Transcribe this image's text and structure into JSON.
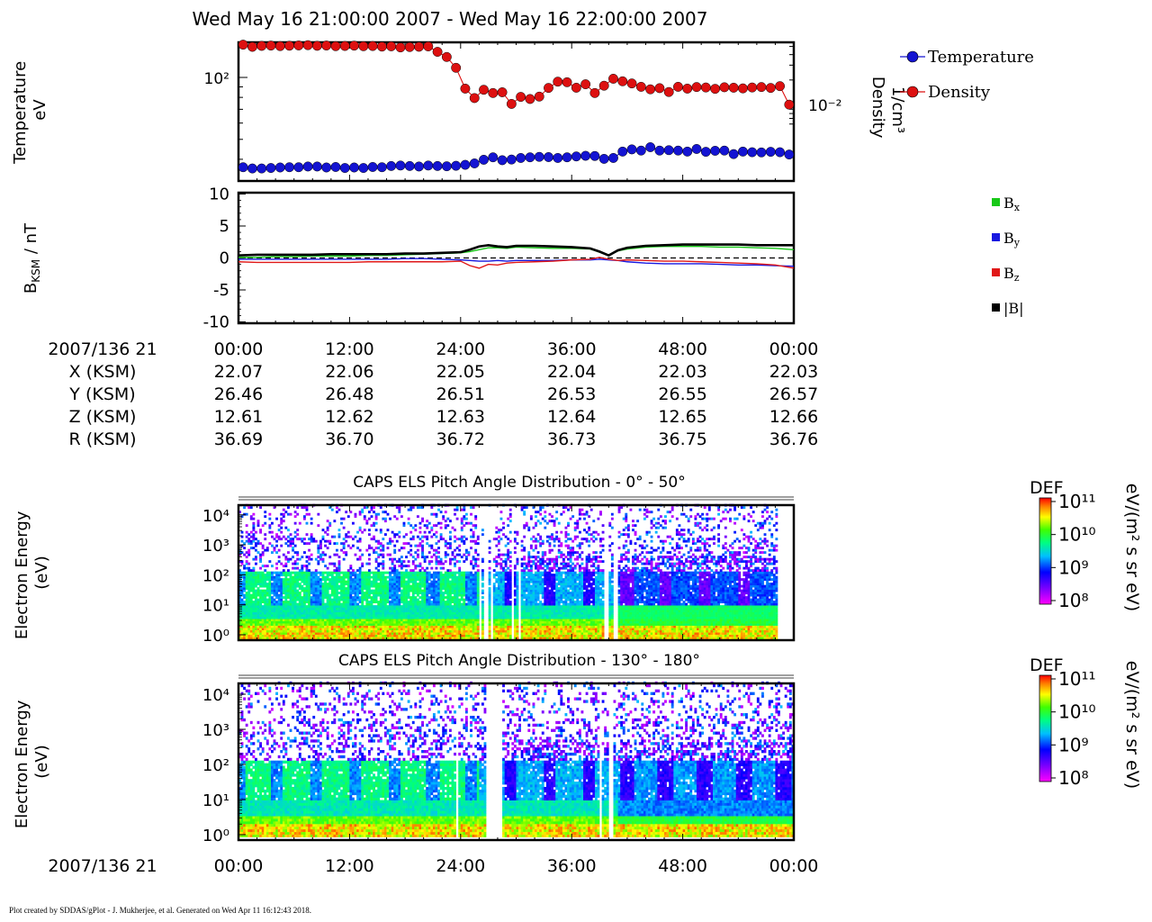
{
  "page_title": "Wed May 16 21:00:00 2007 - Wed May 16 22:00:00 2007",
  "footer": "Plot created by SDDAS/gPlot - J. Mukherjee, et al.  Generated on Wed Apr 11 16:12:43 2018.",
  "colors": {
    "temperature": "#1414d2",
    "density": "#dd1010",
    "bx": "#18c818",
    "by": "#1818e0",
    "bz": "#e01818",
    "bmag": "#000000"
  },
  "chart_data": [
    {
      "type": "scatter",
      "panel": "plasma-moments",
      "x_unit": "minutes after 21:00",
      "x": [
        0,
        1,
        2,
        3,
        4,
        5,
        6,
        7,
        8,
        9,
        10,
        11,
        12,
        13,
        14,
        15,
        16,
        17,
        18,
        19,
        20,
        21,
        22,
        23,
        24,
        25,
        26,
        27,
        28,
        29,
        30,
        31,
        32,
        33,
        34,
        35,
        36,
        37,
        38,
        39,
        40,
        41,
        42,
        43,
        44,
        45,
        46,
        47,
        48,
        49,
        50,
        51,
        52,
        53,
        54,
        55,
        56,
        57,
        58,
        59
      ],
      "ylabel": "Temperature eV",
      "ylabel_lines": [
        "Temperature",
        "eV"
      ],
      "y_scale": "log",
      "y_ticks": [
        100
      ],
      "y_tick_labels": [
        "10²"
      ],
      "y2label_lines": [
        "Density",
        "1/cm³"
      ],
      "y2_scale": "log",
      "y2_ticks": [
        0.01
      ],
      "y2_tick_labels": [
        "10⁻²"
      ],
      "legend_position": "right",
      "series": [
        {
          "name": "Temperature",
          "axis": "left",
          "values": [
            36.6,
            36.1,
            36.1,
            36.3,
            36.5,
            36.6,
            36.6,
            36.9,
            36.9,
            36.5,
            36.7,
            36.3,
            36.5,
            36.3,
            36.7,
            36.6,
            37.1,
            37.3,
            37.1,
            36.9,
            37.3,
            37.1,
            37,
            37.2,
            37.6,
            38.2,
            39.8,
            40.9,
            39.6,
            39.9,
            40.6,
            40.9,
            41.1,
            41,
            40.6,
            40.9,
            41.3,
            41.6,
            41.5,
            40.2,
            40.6,
            43.6,
            44.7,
            44.1,
            45.8,
            44.1,
            44.3,
            44.1,
            43.6,
            44.9,
            43.5,
            44,
            44.1,
            42.4,
            43.6,
            43.3,
            43.2,
            43.5,
            43.3,
            42.2
          ]
        },
        {
          "name": "Density",
          "axis": "right",
          "values": [
            0.0525,
            0.0495,
            0.0508,
            0.0512,
            0.0505,
            0.051,
            0.0514,
            0.0518,
            0.0509,
            0.0513,
            0.0504,
            0.0507,
            0.0511,
            0.0503,
            0.0506,
            0.0498,
            0.0502,
            0.0487,
            0.0492,
            0.0496,
            0.0501,
            0.0432,
            0.0375,
            0.0279,
            0.0158,
            0.0122,
            0.0153,
            0.014,
            0.0143,
            0.0104,
            0.0126,
            0.0119,
            0.0127,
            0.0161,
            0.0191,
            0.0188,
            0.0162,
            0.0178,
            0.014,
            0.0171,
            0.0207,
            0.0193,
            0.0182,
            0.0166,
            0.0155,
            0.016,
            0.0144,
            0.0166,
            0.0158,
            0.0165,
            0.0163,
            0.0157,
            0.0164,
            0.0162,
            0.0159,
            0.0163,
            0.0165,
            0.0161,
            0.0169,
            0.0102
          ]
        }
      ]
    },
    {
      "type": "line",
      "panel": "magnetic-field",
      "x_unit": "minutes after 21:00",
      "x": [
        0,
        2,
        4,
        6,
        8,
        10,
        12,
        14,
        16,
        18,
        20,
        22,
        24,
        25,
        26,
        27,
        28,
        29,
        30,
        32,
        34,
        36,
        38,
        39,
        40,
        41,
        42,
        44,
        46,
        48,
        50,
        52,
        54,
        56,
        58,
        60
      ],
      "ylabel": "B_KSM / nT",
      "ylim": [
        -10,
        10
      ],
      "y_ticks": [
        10,
        5,
        0,
        -5,
        -10
      ],
      "legend_position": "right",
      "series": [
        {
          "name": "Bx",
          "values": [
            0.1,
            0.1,
            0.2,
            0.2,
            0.3,
            0.3,
            0.3,
            0.4,
            0.4,
            0.5,
            0.6,
            0.7,
            0.8,
            1.0,
            1.3,
            1.6,
            1.6,
            1.5,
            1.7,
            1.6,
            1.5,
            1.5,
            1.4,
            0.9,
            0.4,
            1.1,
            1.4,
            1.7,
            1.8,
            1.8,
            1.8,
            1.7,
            1.7,
            1.6,
            1.5,
            1.3
          ]
        },
        {
          "name": "By",
          "values": [
            -0.2,
            -0.2,
            -0.2,
            -0.2,
            -0.2,
            -0.2,
            -0.2,
            -0.2,
            -0.2,
            -0.1,
            -0.1,
            -0.2,
            -0.3,
            -0.4,
            -0.5,
            -0.5,
            -0.4,
            -0.5,
            -0.4,
            -0.4,
            -0.4,
            -0.3,
            -0.3,
            -0.2,
            -0.3,
            -0.4,
            -0.6,
            -0.8,
            -0.9,
            -0.9,
            -0.9,
            -1.0,
            -1.1,
            -1.1,
            -1.2,
            -1.3
          ]
        },
        {
          "name": "Bz",
          "values": [
            -0.6,
            -0.7,
            -0.7,
            -0.7,
            -0.7,
            -0.7,
            -0.7,
            -0.6,
            -0.6,
            -0.6,
            -0.6,
            -0.6,
            -0.5,
            -1.2,
            -1.6,
            -1.0,
            -1.1,
            -0.8,
            -0.7,
            -0.6,
            -0.5,
            -0.3,
            -0.2,
            0.1,
            -0.2,
            -0.4,
            -0.3,
            -0.4,
            -0.5,
            -0.5,
            -0.6,
            -0.7,
            -0.8,
            -0.9,
            -1.1,
            -1.6
          ]
        },
        {
          "name": "|B|",
          "values": [
            0.4,
            0.5,
            0.5,
            0.5,
            0.5,
            0.6,
            0.6,
            0.6,
            0.6,
            0.7,
            0.7,
            0.8,
            0.9,
            1.3,
            1.8,
            2.0,
            1.8,
            1.7,
            1.9,
            1.9,
            1.8,
            1.7,
            1.5,
            1.0,
            0.4,
            1.2,
            1.6,
            1.9,
            2.0,
            2.1,
            2.1,
            2.1,
            2.1,
            2.0,
            2.0,
            2.0
          ]
        }
      ]
    },
    {
      "type": "heatmap",
      "panel": "pad-0-50",
      "title": "CAPS ELS Pitch Angle Distribution - 0° - 50°",
      "ylabel_lines": [
        "Electron Energy",
        "(eV)"
      ],
      "y_scale": "log",
      "y_tick_labels": [
        "10⁴",
        "10³",
        "10²",
        "10¹",
        "10⁰"
      ],
      "colorbar": {
        "label": "DEF",
        "units": "eV/(m² s sr eV)",
        "ticks": [
          "10¹¹",
          "10¹⁰",
          "10⁹",
          "10⁸"
        ]
      },
      "data_gaps_minutes": [
        [
          26.0,
          26.2
        ],
        [
          26.6,
          26.9
        ],
        [
          27.3,
          27.5
        ],
        [
          29.6,
          29.8
        ],
        [
          30.2,
          30.4
        ],
        [
          39.6,
          39.9
        ],
        [
          40.5,
          40.9
        ],
        [
          58.2,
          60.0
        ]
      ]
    },
    {
      "type": "heatmap",
      "panel": "pad-130-180",
      "title": "CAPS ELS Pitch Angle Distribution - 130° - 180°",
      "ylabel_lines": [
        "Electron Energy",
        "(eV)"
      ],
      "y_scale": "log",
      "y_tick_labels": [
        "10⁴",
        "10³",
        "10²",
        "10¹",
        "10⁰"
      ],
      "colorbar": {
        "label": "DEF",
        "units": "eV/(m² s sr eV)",
        "ticks": [
          "10¹¹",
          "10¹⁰",
          "10⁹",
          "10⁸"
        ]
      },
      "data_gaps_minutes": [
        [
          23.4,
          23.8
        ],
        [
          26.8,
          28.4
        ],
        [
          39.1,
          39.3
        ],
        [
          40.0,
          40.5
        ]
      ]
    }
  ],
  "ephemeris": {
    "date_label": "2007/136 21",
    "time_ticks": [
      "00:00",
      "12:00",
      "24:00",
      "36:00",
      "48:00",
      "00:00"
    ],
    "rows": [
      {
        "label": "X (KSM)",
        "values": [
          "22.07",
          "22.06",
          "22.05",
          "22.04",
          "22.03",
          "22.03"
        ]
      },
      {
        "label": "Y (KSM)",
        "values": [
          "26.46",
          "26.48",
          "26.51",
          "26.53",
          "26.55",
          "26.57"
        ]
      },
      {
        "label": "Z (KSM)",
        "values": [
          "12.61",
          "12.62",
          "12.63",
          "12.64",
          "12.65",
          "12.66"
        ]
      },
      {
        "label": "R (KSM)",
        "values": [
          "36.69",
          "36.70",
          "36.72",
          "36.73",
          "36.75",
          "36.76"
        ]
      }
    ]
  },
  "bottom_axis": {
    "date_label": "2007/136 21",
    "time_ticks": [
      "00:00",
      "12:00",
      "24:00",
      "36:00",
      "48:00",
      "00:00"
    ]
  }
}
